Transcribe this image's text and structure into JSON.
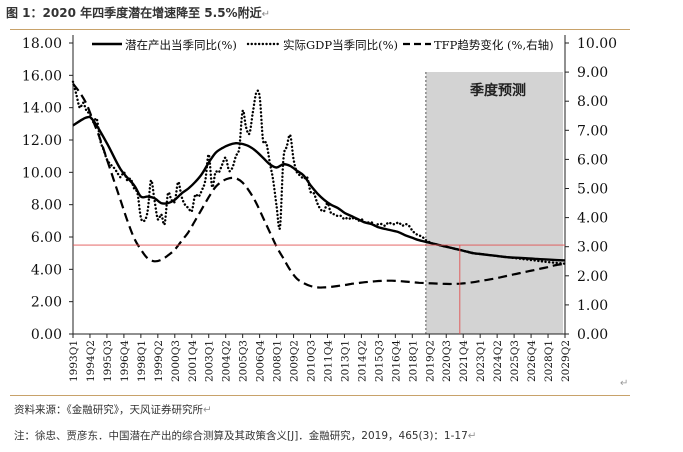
{
  "figure": {
    "title": "图 1：2020 年四季度潜在增速降至 5.5%附近",
    "para_mark": "↵"
  },
  "chart_data": {
    "type": "line",
    "forecast_label": "季度预测",
    "forecast_start": "2019Q1",
    "y_left": {
      "min": 0,
      "max": 18,
      "step": 2,
      "ticks": [
        "0.00",
        "2.00",
        "4.00",
        "6.00",
        "8.00",
        "10.00",
        "12.00",
        "14.00",
        "16.00",
        "18.00"
      ]
    },
    "y_right": {
      "min": 0,
      "max": 10,
      "step": 1,
      "ticks": [
        "0.00",
        "1.00",
        "2.00",
        "3.00",
        "4.00",
        "5.00",
        "6.00",
        "7.00",
        "8.00",
        "9.00",
        "10.00"
      ]
    },
    "x_ticks": [
      "1993Q1",
      "1994Q2",
      "1995Q3",
      "1996Q4",
      "1998Q1",
      "1999Q2",
      "2000Q3",
      "2001Q4",
      "2003Q1",
      "2004Q2",
      "2005Q3",
      "2006Q4",
      "2008Q1",
      "2009Q2",
      "2010Q3",
      "2011Q4",
      "2013Q1",
      "2014Q2",
      "2015Q3",
      "2016Q4",
      "2018Q1",
      "2019Q2",
      "2020Q3",
      "2021Q4",
      "2023Q1",
      "2024Q2",
      "2025Q3",
      "2026Q4",
      "2028Q1",
      "2029Q2"
    ],
    "reference": {
      "y": 5.5,
      "x": "2021Q3",
      "color": "#e05050"
    },
    "series": [
      {
        "name": "潜在产出当季同比(%)",
        "axis": "left",
        "style": "solid",
        "points": [
          [
            "1993Q1",
            12.9
          ],
          [
            "1994Q1",
            13.4
          ],
          [
            "1994Q3",
            13.2
          ],
          [
            "1995Q3",
            11.8
          ],
          [
            "1996Q3",
            10.2
          ],
          [
            "1997Q3",
            9.2
          ],
          [
            "1998Q1",
            8.5
          ],
          [
            "1998Q3",
            8.5
          ],
          [
            "1999Q1",
            8.4
          ],
          [
            "1999Q3",
            8.1
          ],
          [
            "2000Q1",
            8.1
          ],
          [
            "2000Q3",
            8.3
          ],
          [
            "2001Q1",
            8.7
          ],
          [
            "2001Q3",
            9.0
          ],
          [
            "2002Q1",
            9.4
          ],
          [
            "2002Q3",
            9.9
          ],
          [
            "2003Q1",
            10.6
          ],
          [
            "2003Q3",
            11.2
          ],
          [
            "2004Q1",
            11.5
          ],
          [
            "2004Q3",
            11.7
          ],
          [
            "2005Q1",
            11.8
          ],
          [
            "2005Q3",
            11.75
          ],
          [
            "2006Q1",
            11.6
          ],
          [
            "2006Q3",
            11.3
          ],
          [
            "2007Q1",
            10.9
          ],
          [
            "2007Q3",
            10.5
          ],
          [
            "2008Q1",
            10.3
          ],
          [
            "2008Q3",
            10.5
          ],
          [
            "2009Q1",
            10.4
          ],
          [
            "2009Q3",
            10.1
          ],
          [
            "2010Q1",
            9.8
          ],
          [
            "2010Q3",
            9.2
          ],
          [
            "2011Q1",
            8.7
          ],
          [
            "2011Q3",
            8.3
          ],
          [
            "2012Q1",
            8.0
          ],
          [
            "2012Q3",
            7.8
          ],
          [
            "2013Q1",
            7.5
          ],
          [
            "2013Q3",
            7.3
          ],
          [
            "2014Q1",
            7.1
          ],
          [
            "2014Q3",
            6.9
          ],
          [
            "2015Q1",
            6.8
          ],
          [
            "2015Q3",
            6.6
          ],
          [
            "2016Q1",
            6.5
          ],
          [
            "2016Q3",
            6.4
          ],
          [
            "2017Q1",
            6.3
          ],
          [
            "2017Q3",
            6.1
          ],
          [
            "2018Q1",
            5.95
          ],
          [
            "2018Q3",
            5.8
          ],
          [
            "2019Q1",
            5.7
          ],
          [
            "2019Q3",
            5.6
          ],
          [
            "2020Q1",
            5.5
          ],
          [
            "2020Q3",
            5.4
          ],
          [
            "2021Q1",
            5.3
          ],
          [
            "2021Q3",
            5.2
          ],
          [
            "2022Q1",
            5.1
          ],
          [
            "2022Q3",
            5.0
          ],
          [
            "2023Q1",
            4.95
          ],
          [
            "2024Q1",
            4.85
          ],
          [
            "2025Q1",
            4.75
          ],
          [
            "2026Q1",
            4.7
          ],
          [
            "2027Q1",
            4.65
          ],
          [
            "2028Q1",
            4.6
          ],
          [
            "2029Q2",
            4.55
          ]
        ]
      },
      {
        "name": "实际GDP当季同比(%)",
        "axis": "left",
        "style": "dotted",
        "points": [
          [
            "1993Q1",
            15.6
          ],
          [
            "1993Q2",
            14.8
          ],
          [
            "1993Q3",
            14.0
          ],
          [
            "1993Q4",
            14.3
          ],
          [
            "1994Q1",
            13.8
          ],
          [
            "1994Q2",
            13.6
          ],
          [
            "1994Q3",
            13.1
          ],
          [
            "1994Q4",
            13.3
          ],
          [
            "1995Q1",
            12.0
          ],
          [
            "1995Q2",
            11.4
          ],
          [
            "1995Q3",
            10.8
          ],
          [
            "1995Q4",
            10.5
          ],
          [
            "1996Q1",
            10.3
          ],
          [
            "1996Q2",
            10.0
          ],
          [
            "1996Q3",
            9.7
          ],
          [
            "1996Q4",
            10.0
          ],
          [
            "1997Q1",
            9.5
          ],
          [
            "1997Q2",
            9.6
          ],
          [
            "1997Q3",
            9.0
          ],
          [
            "1997Q4",
            8.7
          ],
          [
            "1998Q1",
            7.2
          ],
          [
            "1998Q2",
            7.0
          ],
          [
            "1998Q3",
            7.6
          ],
          [
            "1998Q4",
            9.5
          ],
          [
            "1999Q1",
            8.3
          ],
          [
            "1999Q2",
            7.1
          ],
          [
            "1999Q3",
            7.4
          ],
          [
            "1999Q4",
            6.8
          ],
          [
            "2000Q1",
            8.7
          ],
          [
            "2000Q2",
            8.3
          ],
          [
            "2000Q3",
            8.2
          ],
          [
            "2000Q4",
            9.4
          ],
          [
            "2001Q1",
            8.5
          ],
          [
            "2001Q2",
            8.0
          ],
          [
            "2001Q3",
            7.8
          ],
          [
            "2001Q4",
            7.6
          ],
          [
            "2002Q1",
            8.6
          ],
          [
            "2002Q2",
            8.5
          ],
          [
            "2002Q3",
            8.9
          ],
          [
            "2002Q4",
            9.5
          ],
          [
            "2003Q1",
            11.1
          ],
          [
            "2003Q2",
            9.1
          ],
          [
            "2003Q3",
            10.0
          ],
          [
            "2003Q4",
            10.0
          ],
          [
            "2004Q1",
            10.5
          ],
          [
            "2004Q2",
            10.9
          ],
          [
            "2004Q3",
            10.1
          ],
          [
            "2004Q4",
            10.3
          ],
          [
            "2005Q1",
            11.0
          ],
          [
            "2005Q2",
            11.5
          ],
          [
            "2005Q3",
            13.8
          ],
          [
            "2005Q4",
            12.8
          ],
          [
            "2006Q1",
            12.4
          ],
          [
            "2006Q2",
            13.7
          ],
          [
            "2006Q3",
            14.9
          ],
          [
            "2006Q4",
            14.7
          ],
          [
            "2007Q1",
            12.0
          ],
          [
            "2007Q2",
            11.8
          ],
          [
            "2007Q3",
            10.6
          ],
          [
            "2007Q4",
            9.5
          ],
          [
            "2008Q1",
            7.9
          ],
          [
            "2008Q2",
            6.6
          ],
          [
            "2008Q3",
            10.8
          ],
          [
            "2008Q4",
            11.6
          ],
          [
            "2009Q1",
            12.3
          ],
          [
            "2009Q2",
            10.8
          ],
          [
            "2009Q3",
            10.0
          ],
          [
            "2009Q4",
            9.8
          ],
          [
            "2010Q1",
            9.6
          ],
          [
            "2010Q2",
            9.7
          ],
          [
            "2010Q3",
            8.8
          ],
          [
            "2010Q4",
            8.7
          ],
          [
            "2011Q1",
            8.1
          ],
          [
            "2011Q2",
            7.7
          ],
          [
            "2011Q3",
            7.6
          ],
          [
            "2011Q4",
            8.1
          ],
          [
            "2012Q1",
            7.5
          ],
          [
            "2012Q2",
            7.4
          ],
          [
            "2012Q3",
            7.3
          ],
          [
            "2012Q4",
            7.3
          ],
          [
            "2013Q1",
            7.1
          ],
          [
            "2013Q2",
            7.2
          ],
          [
            "2013Q3",
            7.1
          ],
          [
            "2013Q4",
            7.2
          ],
          [
            "2014Q1",
            7.0
          ],
          [
            "2014Q2",
            7.1
          ],
          [
            "2014Q3",
            6.9
          ],
          [
            "2014Q4",
            6.9
          ],
          [
            "2015Q1",
            6.9
          ],
          [
            "2015Q2",
            6.7
          ],
          [
            "2015Q3",
            6.8
          ],
          [
            "2015Q4",
            6.8
          ],
          [
            "2016Q1",
            6.7
          ],
          [
            "2016Q2",
            6.9
          ],
          [
            "2016Q3",
            6.8
          ],
          [
            "2016Q4",
            6.8
          ],
          [
            "2017Q1",
            6.9
          ],
          [
            "2017Q2",
            6.7
          ],
          [
            "2017Q3",
            6.8
          ],
          [
            "2017Q4",
            6.7
          ],
          [
            "2018Q1",
            6.4
          ],
          [
            "2018Q2",
            6.2
          ],
          [
            "2018Q3",
            6.1
          ],
          [
            "2018Q4",
            6.0
          ],
          [
            "2019Q1",
            5.8
          ],
          [
            "2019Q3",
            5.6
          ],
          [
            "2020Q1",
            5.5
          ],
          [
            "2020Q3",
            5.4
          ],
          [
            "2021Q1",
            5.3
          ],
          [
            "2021Q3",
            5.2
          ],
          [
            "2022Q1",
            5.1
          ],
          [
            "2022Q3",
            5.0
          ],
          [
            "2023Q1",
            4.95
          ],
          [
            "2024Q1",
            4.85
          ],
          [
            "2025Q1",
            4.75
          ],
          [
            "2026Q1",
            4.65
          ],
          [
            "2027Q1",
            4.55
          ],
          [
            "2028Q1",
            4.45
          ],
          [
            "2029Q2",
            4.35
          ]
        ]
      },
      {
        "name": "TFP趋势变化 (%,右轴)",
        "axis": "right",
        "style": "dashed",
        "points": [
          [
            "1993Q1",
            8.6
          ],
          [
            "1993Q3",
            8.3
          ],
          [
            "1994Q1",
            7.9
          ],
          [
            "1994Q3",
            7.3
          ],
          [
            "1995Q1",
            6.7
          ],
          [
            "1995Q3",
            6.0
          ],
          [
            "1996Q1",
            5.3
          ],
          [
            "1996Q3",
            4.6
          ],
          [
            "1997Q1",
            3.9
          ],
          [
            "1997Q3",
            3.3
          ],
          [
            "1998Q1",
            2.9
          ],
          [
            "1998Q3",
            2.6
          ],
          [
            "1999Q1",
            2.5
          ],
          [
            "1999Q3",
            2.55
          ],
          [
            "2000Q1",
            2.7
          ],
          [
            "2000Q3",
            2.9
          ],
          [
            "2001Q1",
            3.2
          ],
          [
            "2001Q3",
            3.5
          ],
          [
            "2002Q1",
            3.9
          ],
          [
            "2002Q3",
            4.3
          ],
          [
            "2003Q1",
            4.7
          ],
          [
            "2003Q3",
            5.05
          ],
          [
            "2004Q1",
            5.25
          ],
          [
            "2004Q3",
            5.35
          ],
          [
            "2005Q1",
            5.35
          ],
          [
            "2005Q3",
            5.2
          ],
          [
            "2006Q1",
            4.9
          ],
          [
            "2006Q3",
            4.5
          ],
          [
            "2007Q1",
            4.0
          ],
          [
            "2007Q3",
            3.5
          ],
          [
            "2008Q1",
            3.0
          ],
          [
            "2008Q3",
            2.6
          ],
          [
            "2009Q1",
            2.2
          ],
          [
            "2009Q3",
            1.9
          ],
          [
            "2010Q1",
            1.75
          ],
          [
            "2010Q3",
            1.65
          ],
          [
            "2011Q1",
            1.6
          ],
          [
            "2011Q3",
            1.6
          ],
          [
            "2012Q1",
            1.62
          ],
          [
            "2012Q3",
            1.65
          ],
          [
            "2013Q1",
            1.68
          ],
          [
            "2013Q3",
            1.72
          ],
          [
            "2014Q1",
            1.75
          ],
          [
            "2014Q3",
            1.78
          ],
          [
            "2015Q1",
            1.8
          ],
          [
            "2015Q3",
            1.82
          ],
          [
            "2016Q1",
            1.83
          ],
          [
            "2016Q3",
            1.83
          ],
          [
            "2017Q1",
            1.82
          ],
          [
            "2017Q3",
            1.8
          ],
          [
            "2018Q1",
            1.78
          ],
          [
            "2018Q3",
            1.76
          ],
          [
            "2019Q1",
            1.75
          ],
          [
            "2019Q3",
            1.74
          ],
          [
            "2020Q1",
            1.73
          ],
          [
            "2020Q3",
            1.72
          ],
          [
            "2021Q1",
            1.72
          ],
          [
            "2021Q3",
            1.73
          ],
          [
            "2022Q1",
            1.75
          ],
          [
            "2022Q3",
            1.78
          ],
          [
            "2023Q1",
            1.82
          ],
          [
            "2023Q3",
            1.86
          ],
          [
            "2024Q1",
            1.9
          ],
          [
            "2024Q3",
            1.95
          ],
          [
            "2025Q1",
            2.0
          ],
          [
            "2025Q3",
            2.05
          ],
          [
            "2026Q1",
            2.1
          ],
          [
            "2026Q3",
            2.15
          ],
          [
            "2027Q1",
            2.2
          ],
          [
            "2027Q3",
            2.25
          ],
          [
            "2028Q1",
            2.3
          ],
          [
            "2028Q3",
            2.36
          ],
          [
            "2029Q2",
            2.42
          ]
        ]
      }
    ]
  },
  "notes": {
    "source": "资料来源：《金融研究》，天风证券研究所",
    "reference": "注：徐忠、贾彦东．中国潜在产出的综合测算及其政策含义[J]．金融研究，2019，465(3)：1-17"
  }
}
